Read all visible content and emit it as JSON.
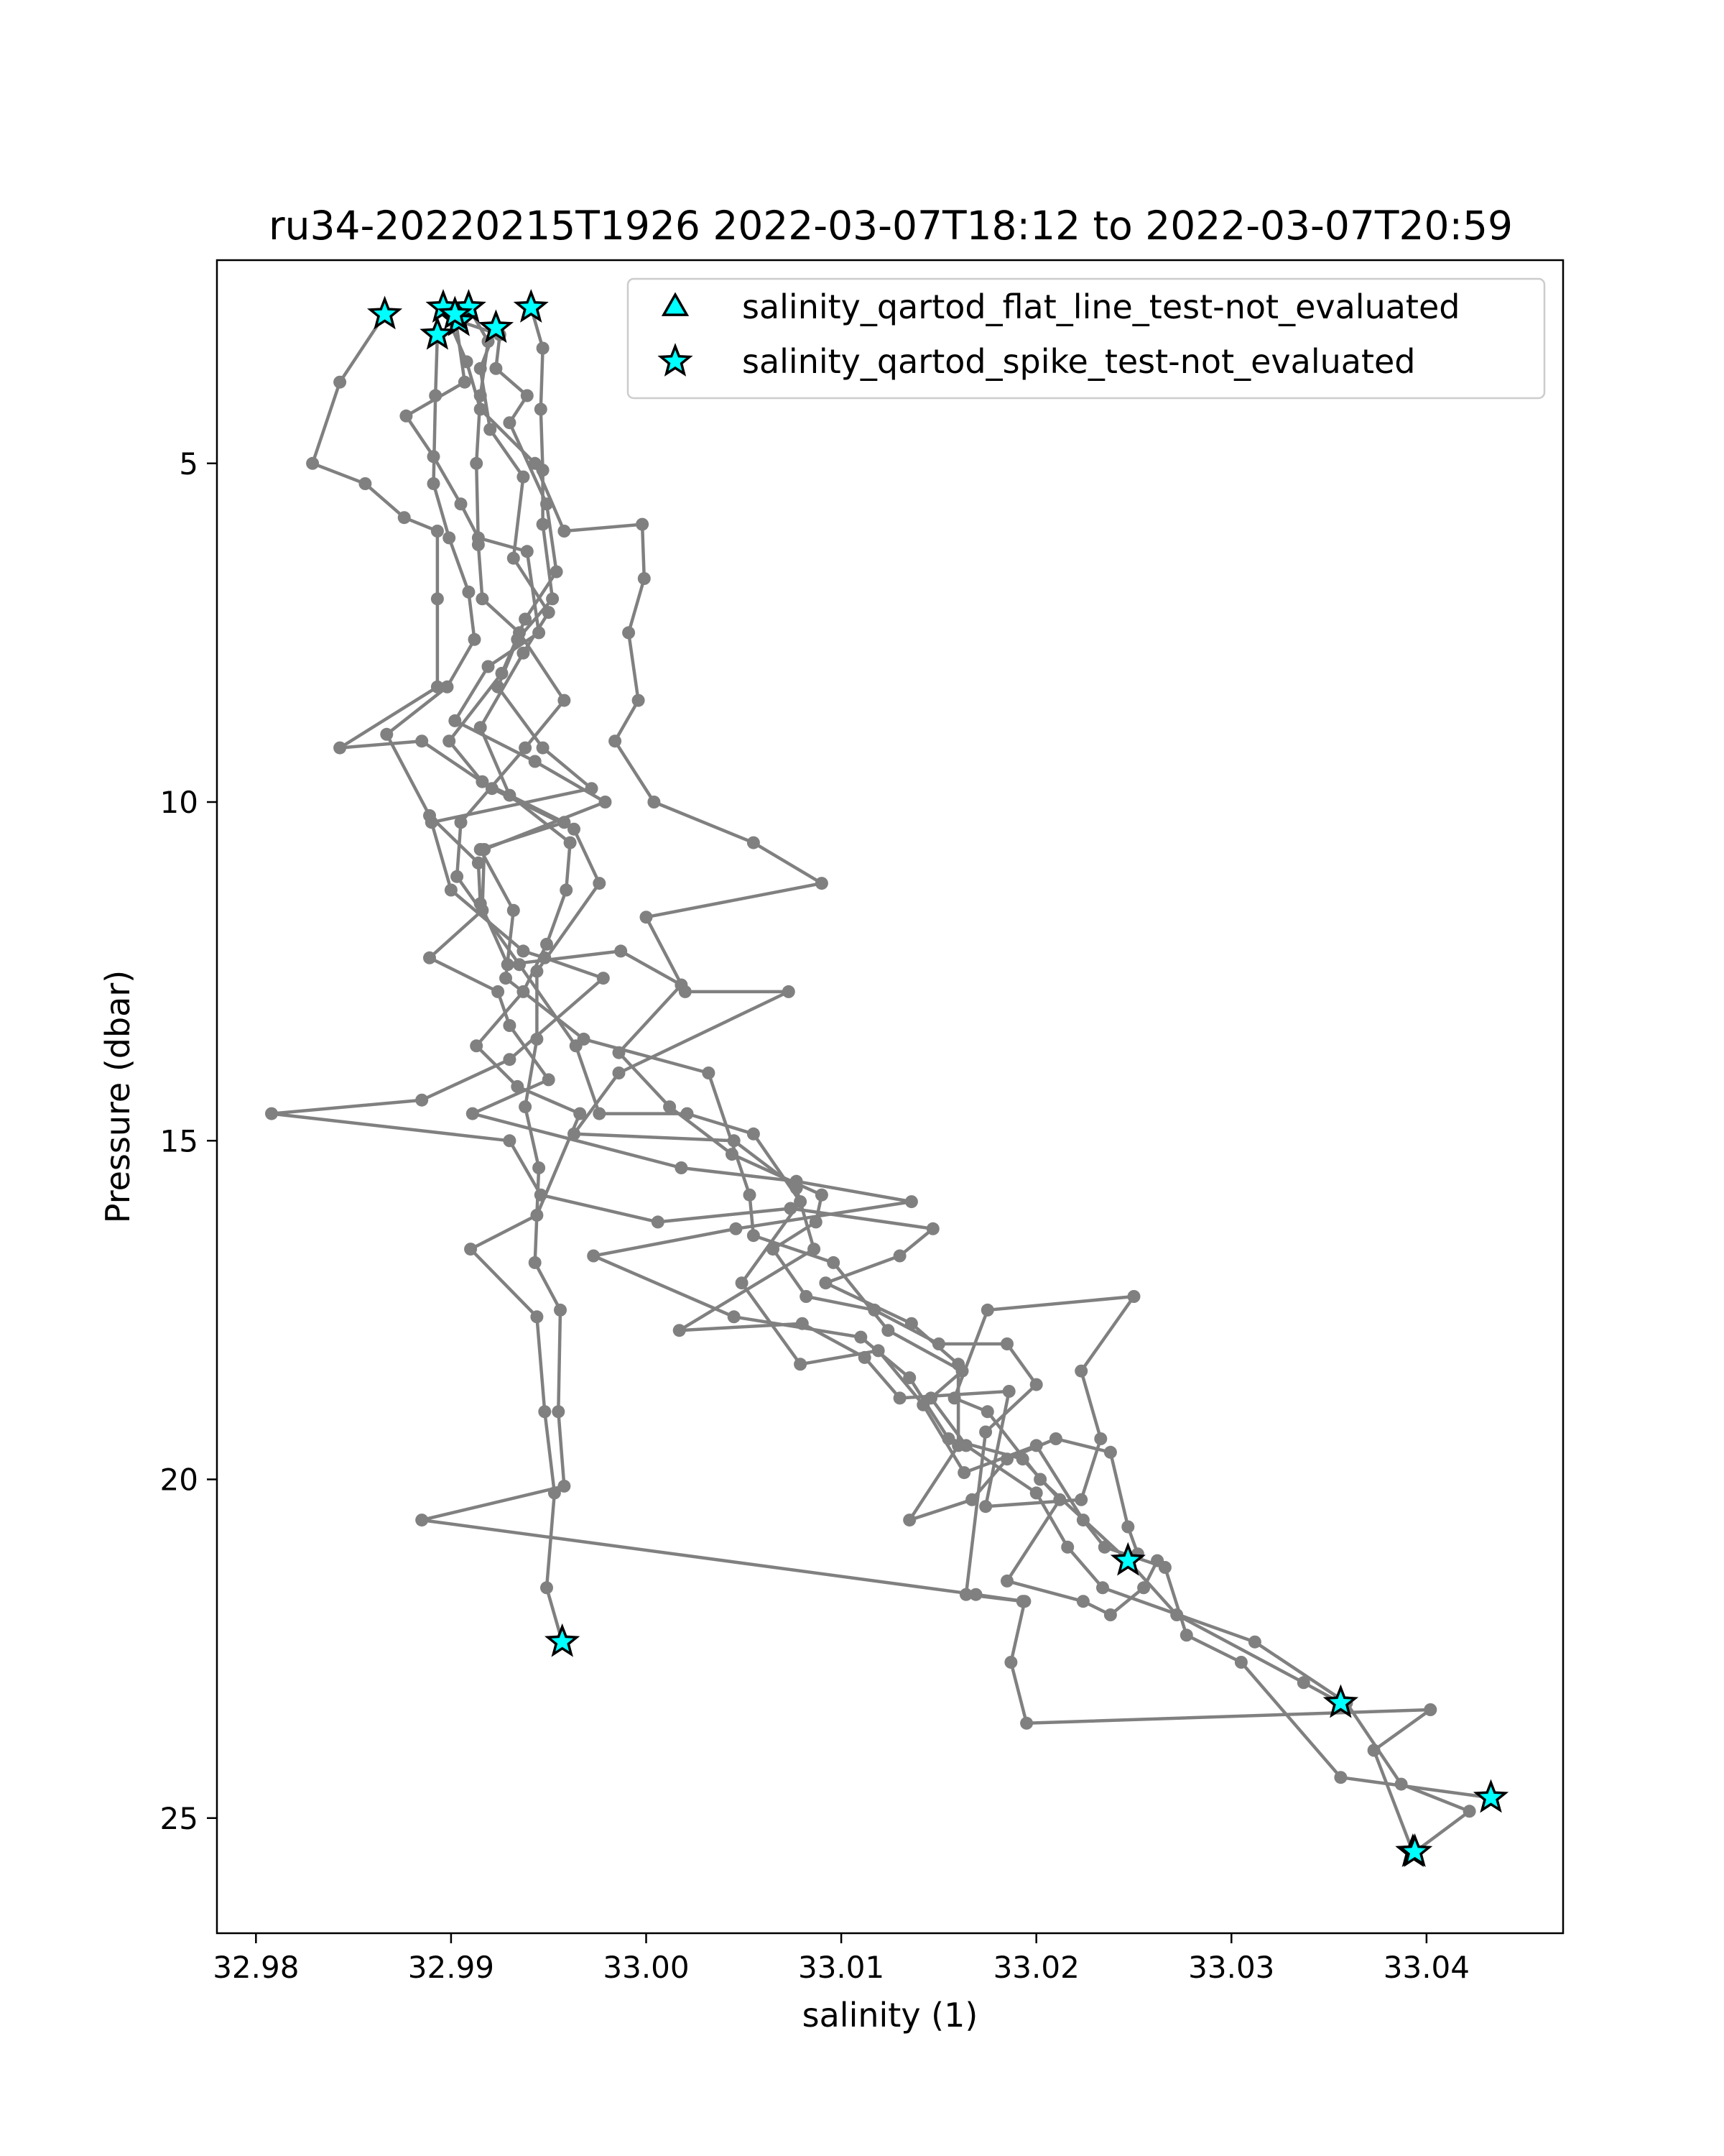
{
  "chart_data": {
    "type": "line",
    "title": "ru34-20220215T1926 2022-03-07T18:12 to 2022-03-07T20:59",
    "xlabel": "salinity (1)",
    "ylabel": "Pressure (dbar)",
    "xlim": [
      32.978,
      33.047
    ],
    "ylim": [
      26.7,
      2.0
    ],
    "y_inverted": true,
    "grid": false,
    "legend_position": "upper-right",
    "x_ticks": [
      {
        "value": 32.98,
        "label": "32.98"
      },
      {
        "value": 32.99,
        "label": "32.99"
      },
      {
        "value": 33.0,
        "label": "33.00"
      },
      {
        "value": 33.01,
        "label": "33.01"
      },
      {
        "value": 33.02,
        "label": "33.02"
      },
      {
        "value": 33.03,
        "label": "33.03"
      },
      {
        "value": 33.04,
        "label": "33.04"
      }
    ],
    "y_ticks": [
      {
        "value": 5,
        "label": "5"
      },
      {
        "value": 10,
        "label": "10"
      },
      {
        "value": 15,
        "label": "15"
      },
      {
        "value": 20,
        "label": "20"
      },
      {
        "value": 25,
        "label": "25"
      }
    ],
    "line_color": "#808080",
    "flag_color": "#00ffff",
    "flag_edge_color": "#000000",
    "legend": [
      {
        "label": "salinity_qartod_flat_line_test-not_evaluated",
        "marker": "triangle"
      },
      {
        "label": "salinity_qartod_spike_test-not_evaluated",
        "marker": "star"
      }
    ],
    "series": [
      {
        "points": [
          [
            32.9866,
            2.8
          ],
          [
            32.9843,
            3.8
          ],
          [
            32.9829,
            5.0
          ],
          [
            32.9856,
            5.3
          ],
          [
            32.9876,
            5.8
          ],
          [
            32.9893,
            6.0
          ],
          [
            32.9893,
            7.0
          ],
          [
            32.9893,
            8.3
          ],
          [
            32.9843,
            9.2
          ],
          [
            32.9885,
            9.1
          ],
          [
            32.9921,
            9.8
          ],
          [
            32.9963,
            10.4
          ],
          [
            32.9976,
            11.2
          ],
          [
            32.9944,
            12.5
          ],
          [
            32.9944,
            13.5
          ],
          [
            32.9938,
            14.5
          ],
          [
            32.9945,
            15.4
          ],
          [
            32.9943,
            16.8
          ],
          [
            32.9956,
            17.5
          ],
          [
            32.9955,
            19.0
          ],
          [
            32.9958,
            20.1
          ],
          [
            32.9885,
            20.6
          ],
          [
            33.0169,
            21.7
          ],
          [
            33.0194,
            21.8
          ],
          [
            33.0187,
            22.7
          ],
          [
            33.0195,
            23.6
          ],
          [
            33.0402,
            23.4
          ],
          [
            33.0373,
            24.0
          ],
          [
            33.0393,
            25.5
          ]
        ],
        "flags": [
          [
            32.9866,
            2.8
          ],
          [
            33.0393,
            25.5
          ]
        ]
      },
      {
        "points": [
          [
            32.9896,
            2.7
          ],
          [
            32.9908,
            3.5
          ],
          [
            32.9915,
            4.2
          ],
          [
            32.9943,
            5.0
          ],
          [
            32.9958,
            6.0
          ],
          [
            32.9998,
            5.9
          ],
          [
            32.9999,
            6.7
          ],
          [
            32.9991,
            7.5
          ],
          [
            32.9996,
            8.5
          ],
          [
            32.9984,
            9.1
          ],
          [
            33.0004,
            10.0
          ],
          [
            33.0055,
            10.6
          ],
          [
            33.009,
            11.2
          ],
          [
            33.0,
            11.7
          ],
          [
            33.002,
            12.8
          ],
          [
            33.0073,
            12.8
          ],
          [
            32.9986,
            14.0
          ],
          [
            32.9963,
            14.9
          ],
          [
            33.0045,
            15.0
          ],
          [
            33.0077,
            15.7
          ],
          [
            33.0086,
            16.6
          ],
          [
            33.0017,
            17.8
          ],
          [
            33.008,
            17.7
          ],
          [
            33.0112,
            18.2
          ],
          [
            33.013,
            18.8
          ],
          [
            33.0186,
            18.7
          ],
          [
            33.0174,
            20.4
          ],
          [
            33.0223,
            20.3
          ],
          [
            33.0233,
            19.4
          ],
          [
            33.0223,
            18.4
          ],
          [
            33.025,
            17.3
          ],
          [
            33.0175,
            17.5
          ],
          [
            33.0158,
            18.8
          ],
          [
            33.0175,
            19.0
          ],
          [
            33.0202,
            20.0
          ],
          [
            33.0247,
            21.2
          ],
          [
            33.0272,
            22.0
          ],
          [
            33.0337,
            23.0
          ],
          [
            33.0356,
            23.3
          ]
        ],
        "flags": [
          [
            32.9896,
            2.7
          ],
          [
            33.0247,
            21.2
          ],
          [
            33.0356,
            23.3
          ]
        ]
      },
      {
        "points": [
          [
            32.9909,
            2.7
          ],
          [
            32.9919,
            3.2
          ],
          [
            32.9915,
            4.0
          ],
          [
            32.9913,
            5.0
          ],
          [
            32.9914,
            6.2
          ],
          [
            32.9916,
            7.0
          ],
          [
            32.9935,
            7.5
          ],
          [
            32.9958,
            8.5
          ],
          [
            32.9938,
            9.2
          ],
          [
            32.9905,
            10.3
          ],
          [
            32.9903,
            11.1
          ],
          [
            32.9935,
            12.4
          ],
          [
            32.9964,
            13.6
          ],
          [
            32.9976,
            14.6
          ],
          [
            33.0021,
            14.6
          ],
          [
            33.0055,
            14.9
          ],
          [
            33.0079,
            15.9
          ],
          [
            33.0049,
            17.1
          ],
          [
            33.0079,
            18.3
          ],
          [
            33.0119,
            18.1
          ],
          [
            33.0142,
            18.9
          ],
          [
            33.0163,
            19.9
          ],
          [
            33.02,
            19.5
          ],
          [
            33.0224,
            20.6
          ],
          [
            33.0235,
            21.0
          ],
          [
            33.0266,
            21.3
          ],
          [
            33.0277,
            22.3
          ],
          [
            33.0305,
            22.7
          ],
          [
            33.0356,
            24.4
          ],
          [
            33.0433,
            24.7
          ]
        ],
        "flags": [
          [
            32.9909,
            2.7
          ],
          [
            33.0433,
            24.7
          ]
        ]
      },
      {
        "points": [
          [
            32.9904,
            2.9
          ],
          [
            32.9925,
            3.1
          ],
          [
            32.9923,
            3.6
          ],
          [
            32.9939,
            4.0
          ],
          [
            32.993,
            4.4
          ],
          [
            32.9949,
            5.6
          ],
          [
            32.9954,
            6.6
          ],
          [
            32.9938,
            7.3
          ],
          [
            32.9926,
            8.1
          ],
          [
            32.9899,
            9.1
          ],
          [
            32.9916,
            9.7
          ],
          [
            32.9958,
            10.3
          ],
          [
            32.9915,
            10.7
          ],
          [
            32.9932,
            11.6
          ],
          [
            32.9928,
            12.6
          ],
          [
            32.9968,
            13.5
          ],
          [
            33.0032,
            14.0
          ],
          [
            33.0053,
            15.8
          ],
          [
            33.0055,
            16.4
          ],
          [
            33.0096,
            16.8
          ],
          [
            33.0124,
            17.8
          ],
          [
            33.0162,
            18.4
          ],
          [
            33.0146,
            18.8
          ],
          [
            33.0164,
            19.5
          ],
          [
            33.02,
            20.2
          ],
          [
            33.0216,
            21.0
          ],
          [
            33.0234,
            21.6
          ],
          [
            33.0312,
            22.4
          ],
          [
            33.0359,
            23.3
          ],
          [
            33.0387,
            24.5
          ],
          [
            33.0422,
            24.9
          ],
          [
            33.0394,
            25.5
          ]
        ],
        "flags": [
          [
            32.9904,
            2.9
          ],
          [
            33.0394,
            25.5
          ]
        ]
      },
      {
        "points": [
          [
            32.9893,
            3.1
          ],
          [
            32.9892,
            4.0
          ],
          [
            32.9891,
            5.3
          ],
          [
            32.9899,
            6.1
          ],
          [
            32.9909,
            6.9
          ],
          [
            32.9912,
            7.6
          ],
          [
            32.9898,
            8.3
          ],
          [
            32.9867,
            9.0
          ],
          [
            32.9889,
            10.2
          ],
          [
            32.9914,
            10.9
          ],
          [
            32.9915,
            11.5
          ],
          [
            32.9929,
            12.4
          ],
          [
            32.9987,
            12.2
          ],
          [
            33.0018,
            12.7
          ],
          [
            32.9986,
            13.7
          ],
          [
            33.0012,
            14.5
          ],
          [
            33.0044,
            15.2
          ],
          [
            33.009,
            15.8
          ],
          [
            33.0087,
            16.2
          ],
          [
            33.0065,
            16.6
          ],
          [
            33.0082,
            17.3
          ],
          [
            33.0117,
            17.5
          ],
          [
            33.015,
            18.0
          ],
          [
            33.0185,
            18.0
          ],
          [
            33.02,
            18.6
          ],
          [
            33.0174,
            19.3
          ],
          [
            33.0164,
            21.7
          ],
          [
            33.0193,
            21.8
          ]
        ],
        "flags": [
          [
            32.9893,
            3.1
          ]
        ]
      },
      {
        "points": [
          [
            32.9902,
            2.8
          ],
          [
            32.9907,
            3.8
          ],
          [
            32.9877,
            4.3
          ],
          [
            32.9891,
            4.9
          ],
          [
            32.9905,
            5.6
          ],
          [
            32.9914,
            6.1
          ],
          [
            32.9939,
            6.3
          ],
          [
            32.9945,
            7.5
          ],
          [
            32.9919,
            8.0
          ],
          [
            32.9902,
            8.8
          ],
          [
            32.9943,
            9.4
          ],
          [
            32.9979,
            10.0
          ],
          [
            32.9917,
            10.7
          ],
          [
            32.9916,
            11.6
          ],
          [
            32.9889,
            12.3
          ],
          [
            32.9924,
            12.8
          ],
          [
            32.993,
            13.3
          ],
          [
            32.995,
            14.1
          ],
          [
            32.9911,
            14.6
          ],
          [
            33.0018,
            15.4
          ],
          [
            33.0077,
            15.6
          ],
          [
            33.0136,
            15.9
          ],
          [
            33.0046,
            16.3
          ],
          [
            32.9973,
            16.7
          ],
          [
            33.0045,
            17.6
          ],
          [
            33.011,
            17.9
          ],
          [
            33.0135,
            18.5
          ],
          [
            33.0155,
            19.4
          ],
          [
            33.0193,
            19.7
          ],
          [
            33.0212,
            20.3
          ],
          [
            33.0185,
            21.5
          ],
          [
            33.0224,
            21.8
          ],
          [
            33.0238,
            22.0
          ],
          [
            33.0255,
            21.6
          ],
          [
            33.0262,
            21.2
          ]
        ],
        "flags": [
          [
            32.9902,
            2.8
          ]
        ]
      },
      {
        "points": [
          [
            32.9941,
            2.7
          ],
          [
            32.9947,
            3.3
          ],
          [
            32.9946,
            4.2
          ],
          [
            32.9947,
            5.1
          ],
          [
            32.9947,
            5.9
          ],
          [
            32.9952,
            7.0
          ],
          [
            32.9934,
            7.6
          ],
          [
            32.9924,
            8.3
          ],
          [
            32.9947,
            9.2
          ],
          [
            32.9972,
            9.8
          ],
          [
            32.989,
            10.3
          ],
          [
            32.99,
            11.3
          ],
          [
            32.9937,
            12.2
          ],
          [
            32.9948,
            12.3
          ],
          [
            32.9978,
            12.6
          ],
          [
            32.993,
            13.8
          ],
          [
            32.9885,
            14.4
          ],
          [
            32.9808,
            14.6
          ],
          [
            32.993,
            15.0
          ],
          [
            32.9946,
            15.8
          ],
          [
            33.0006,
            16.2
          ],
          [
            33.0074,
            16.0
          ],
          [
            33.0147,
            16.3
          ],
          [
            33.013,
            16.7
          ],
          [
            33.0092,
            17.1
          ],
          [
            33.0136,
            17.7
          ],
          [
            33.016,
            18.3
          ],
          [
            33.016,
            19.5
          ],
          [
            33.0135,
            20.6
          ],
          [
            33.0167,
            20.3
          ],
          [
            33.0185,
            19.7
          ],
          [
            33.021,
            19.4
          ],
          [
            33.0238,
            19.6
          ],
          [
            33.0247,
            20.7
          ],
          [
            33.0252,
            21.1
          ]
        ],
        "flags": [
          [
            32.9941,
            2.7
          ]
        ]
      },
      {
        "points": [
          [
            32.9923,
            3.0
          ],
          [
            32.9915,
            3.6
          ],
          [
            32.992,
            4.5
          ],
          [
            32.9937,
            5.2
          ],
          [
            32.9932,
            6.4
          ],
          [
            32.995,
            7.2
          ],
          [
            32.9937,
            7.8
          ],
          [
            32.9915,
            8.9
          ],
          [
            32.993,
            9.9
          ],
          [
            32.9961,
            10.6
          ],
          [
            32.9959,
            11.3
          ],
          [
            32.9949,
            12.1
          ],
          [
            32.9937,
            12.8
          ],
          [
            32.9913,
            13.6
          ],
          [
            32.9934,
            14.2
          ],
          [
            32.9966,
            14.6
          ],
          [
            32.9944,
            16.1
          ],
          [
            32.991,
            16.6
          ],
          [
            32.9944,
            17.6
          ],
          [
            32.9948,
            19.0
          ],
          [
            32.9953,
            20.2
          ],
          [
            32.9949,
            21.6
          ],
          [
            32.9957,
            22.4
          ]
        ],
        "flags": [
          [
            32.9923,
            3.0
          ],
          [
            32.9957,
            22.4
          ]
        ]
      }
    ]
  }
}
